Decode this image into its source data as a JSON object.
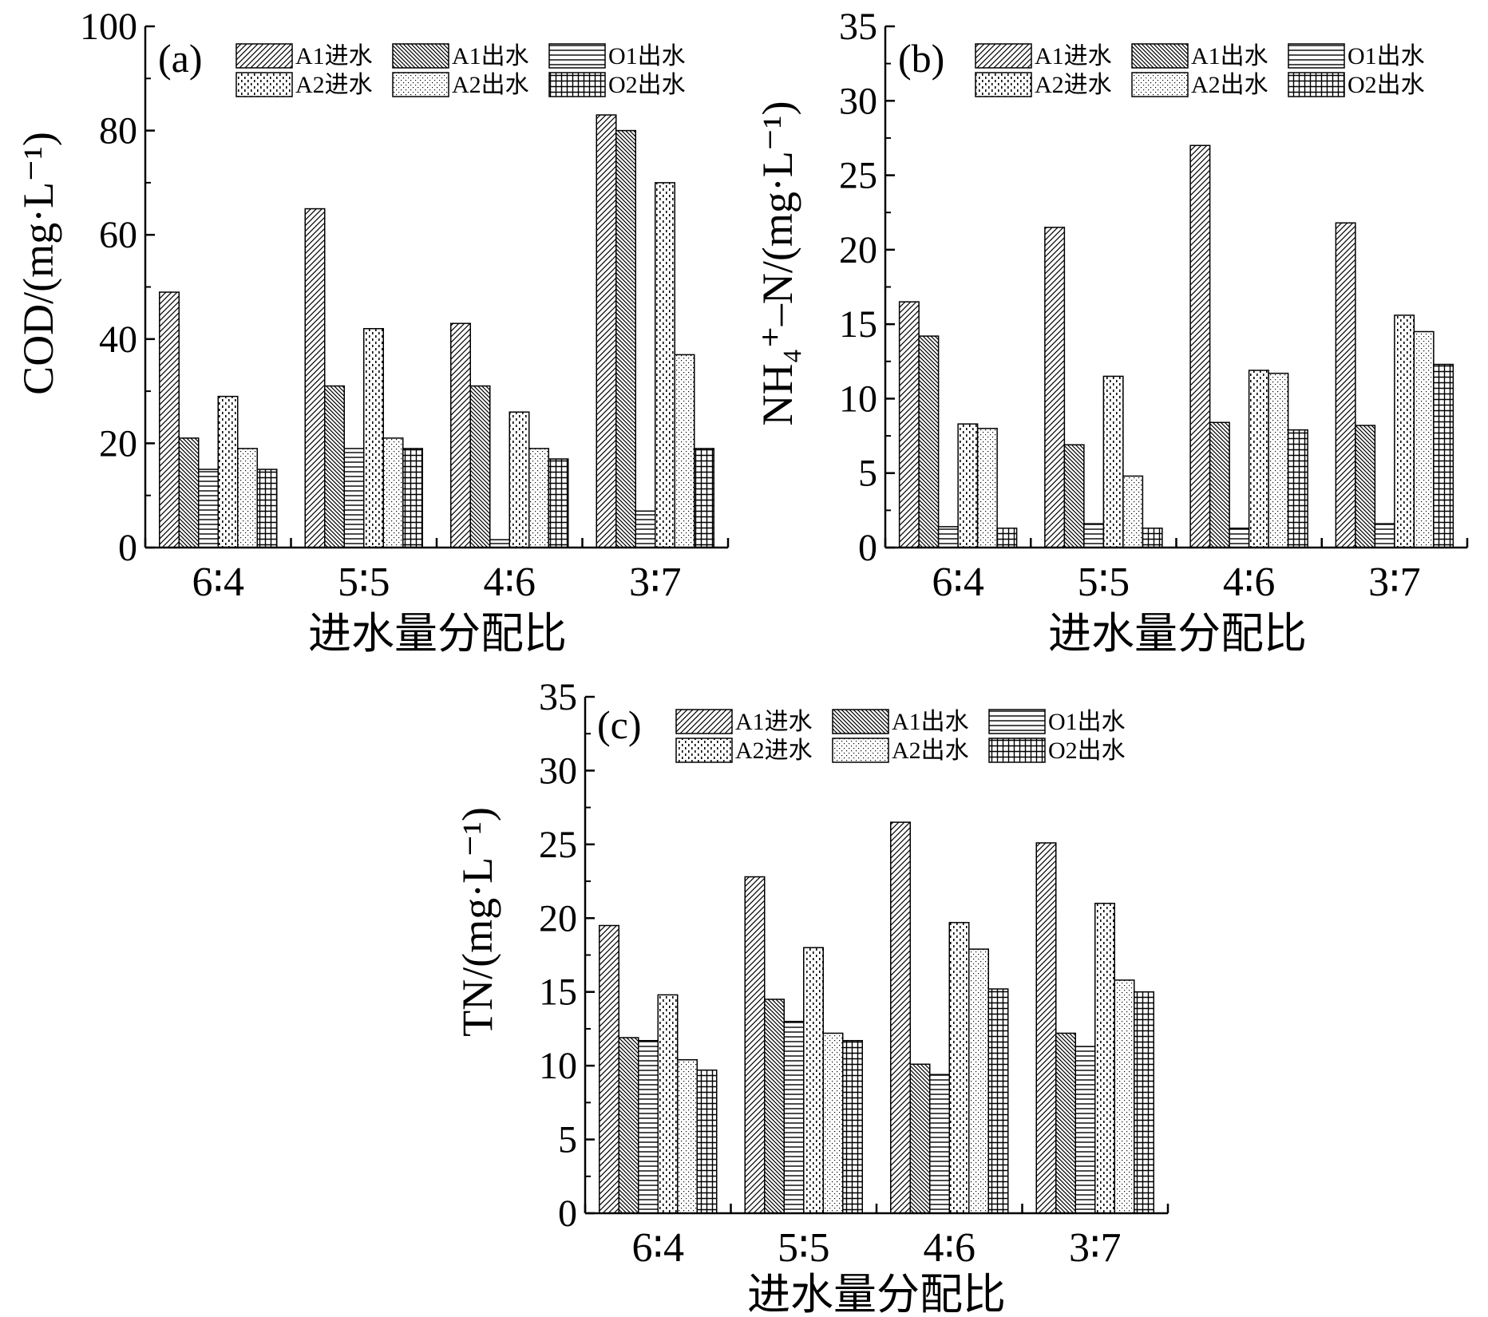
{
  "legend_labels": [
    "A1进水",
    "A1出水",
    "O1出水",
    "A2进水",
    "A2出水",
    "O2出水"
  ],
  "chart_data": [
    {
      "type": "bar",
      "panel_label": "(a)",
      "categories": [
        "6∶4",
        "5∶5",
        "4∶6",
        "3∶7"
      ],
      "xlabel": "进水量分配比",
      "ylabel": "COD/(mg·L⁻¹)",
      "ylim": [
        0,
        100
      ],
      "yticks": [
        0,
        20,
        40,
        60,
        80,
        100
      ],
      "legend_position": "top-right",
      "grid": false,
      "series": [
        {
          "name": "A1进水",
          "values": [
            49,
            65,
            43,
            83
          ]
        },
        {
          "name": "A1出水",
          "values": [
            21,
            31,
            31,
            80
          ]
        },
        {
          "name": "O1出水",
          "values": [
            15,
            19,
            1.5,
            7
          ]
        },
        {
          "name": "A2进水",
          "values": [
            29,
            42,
            26,
            70
          ]
        },
        {
          "name": "A2出水",
          "values": [
            19,
            21,
            19,
            37
          ]
        },
        {
          "name": "O2出水",
          "values": [
            15,
            19,
            17,
            19
          ]
        }
      ]
    },
    {
      "type": "bar",
      "panel_label": "(b)",
      "categories": [
        "6∶4",
        "5∶5",
        "4∶6",
        "3∶7"
      ],
      "xlabel": "进水量分配比",
      "ylabel": "NH₄⁺–N/(mg·L⁻¹)",
      "ylim": [
        0,
        35
      ],
      "yticks": [
        0,
        5,
        10,
        15,
        20,
        25,
        30,
        35
      ],
      "legend_position": "top-right",
      "grid": false,
      "series": [
        {
          "name": "A1进水",
          "values": [
            16.5,
            21.5,
            27.0,
            21.8
          ]
        },
        {
          "name": "A1出水",
          "values": [
            14.2,
            6.9,
            8.4,
            8.2
          ]
        },
        {
          "name": "O1出水",
          "values": [
            1.4,
            1.6,
            1.3,
            1.6
          ]
        },
        {
          "name": "A2进水",
          "values": [
            8.3,
            11.5,
            11.9,
            15.6
          ]
        },
        {
          "name": "A2出水",
          "values": [
            8.0,
            4.8,
            11.7,
            14.5
          ]
        },
        {
          "name": "O2出水",
          "values": [
            1.3,
            1.3,
            7.9,
            12.3
          ]
        }
      ]
    },
    {
      "type": "bar",
      "panel_label": "(c)",
      "categories": [
        "6∶4",
        "5∶5",
        "4∶6",
        "3∶7"
      ],
      "xlabel": "进水量分配比",
      "ylabel": "TN/(mg·L⁻¹)",
      "ylim": [
        0,
        35
      ],
      "yticks": [
        0,
        5,
        10,
        15,
        20,
        25,
        30,
        35
      ],
      "legend_position": "top-right",
      "grid": false,
      "series": [
        {
          "name": "A1进水",
          "values": [
            19.5,
            22.8,
            26.5,
            25.1
          ]
        },
        {
          "name": "A1出水",
          "values": [
            11.9,
            14.5,
            10.1,
            12.2
          ]
        },
        {
          "name": "O1出水",
          "values": [
            11.7,
            13.0,
            9.4,
            11.3
          ]
        },
        {
          "name": "A2进水",
          "values": [
            14.8,
            18.0,
            19.7,
            21.0
          ]
        },
        {
          "name": "A2出水",
          "values": [
            10.4,
            12.2,
            17.9,
            15.8
          ]
        },
        {
          "name": "O2出水",
          "values": [
            9.7,
            11.7,
            15.2,
            15.0
          ]
        }
      ]
    }
  ]
}
